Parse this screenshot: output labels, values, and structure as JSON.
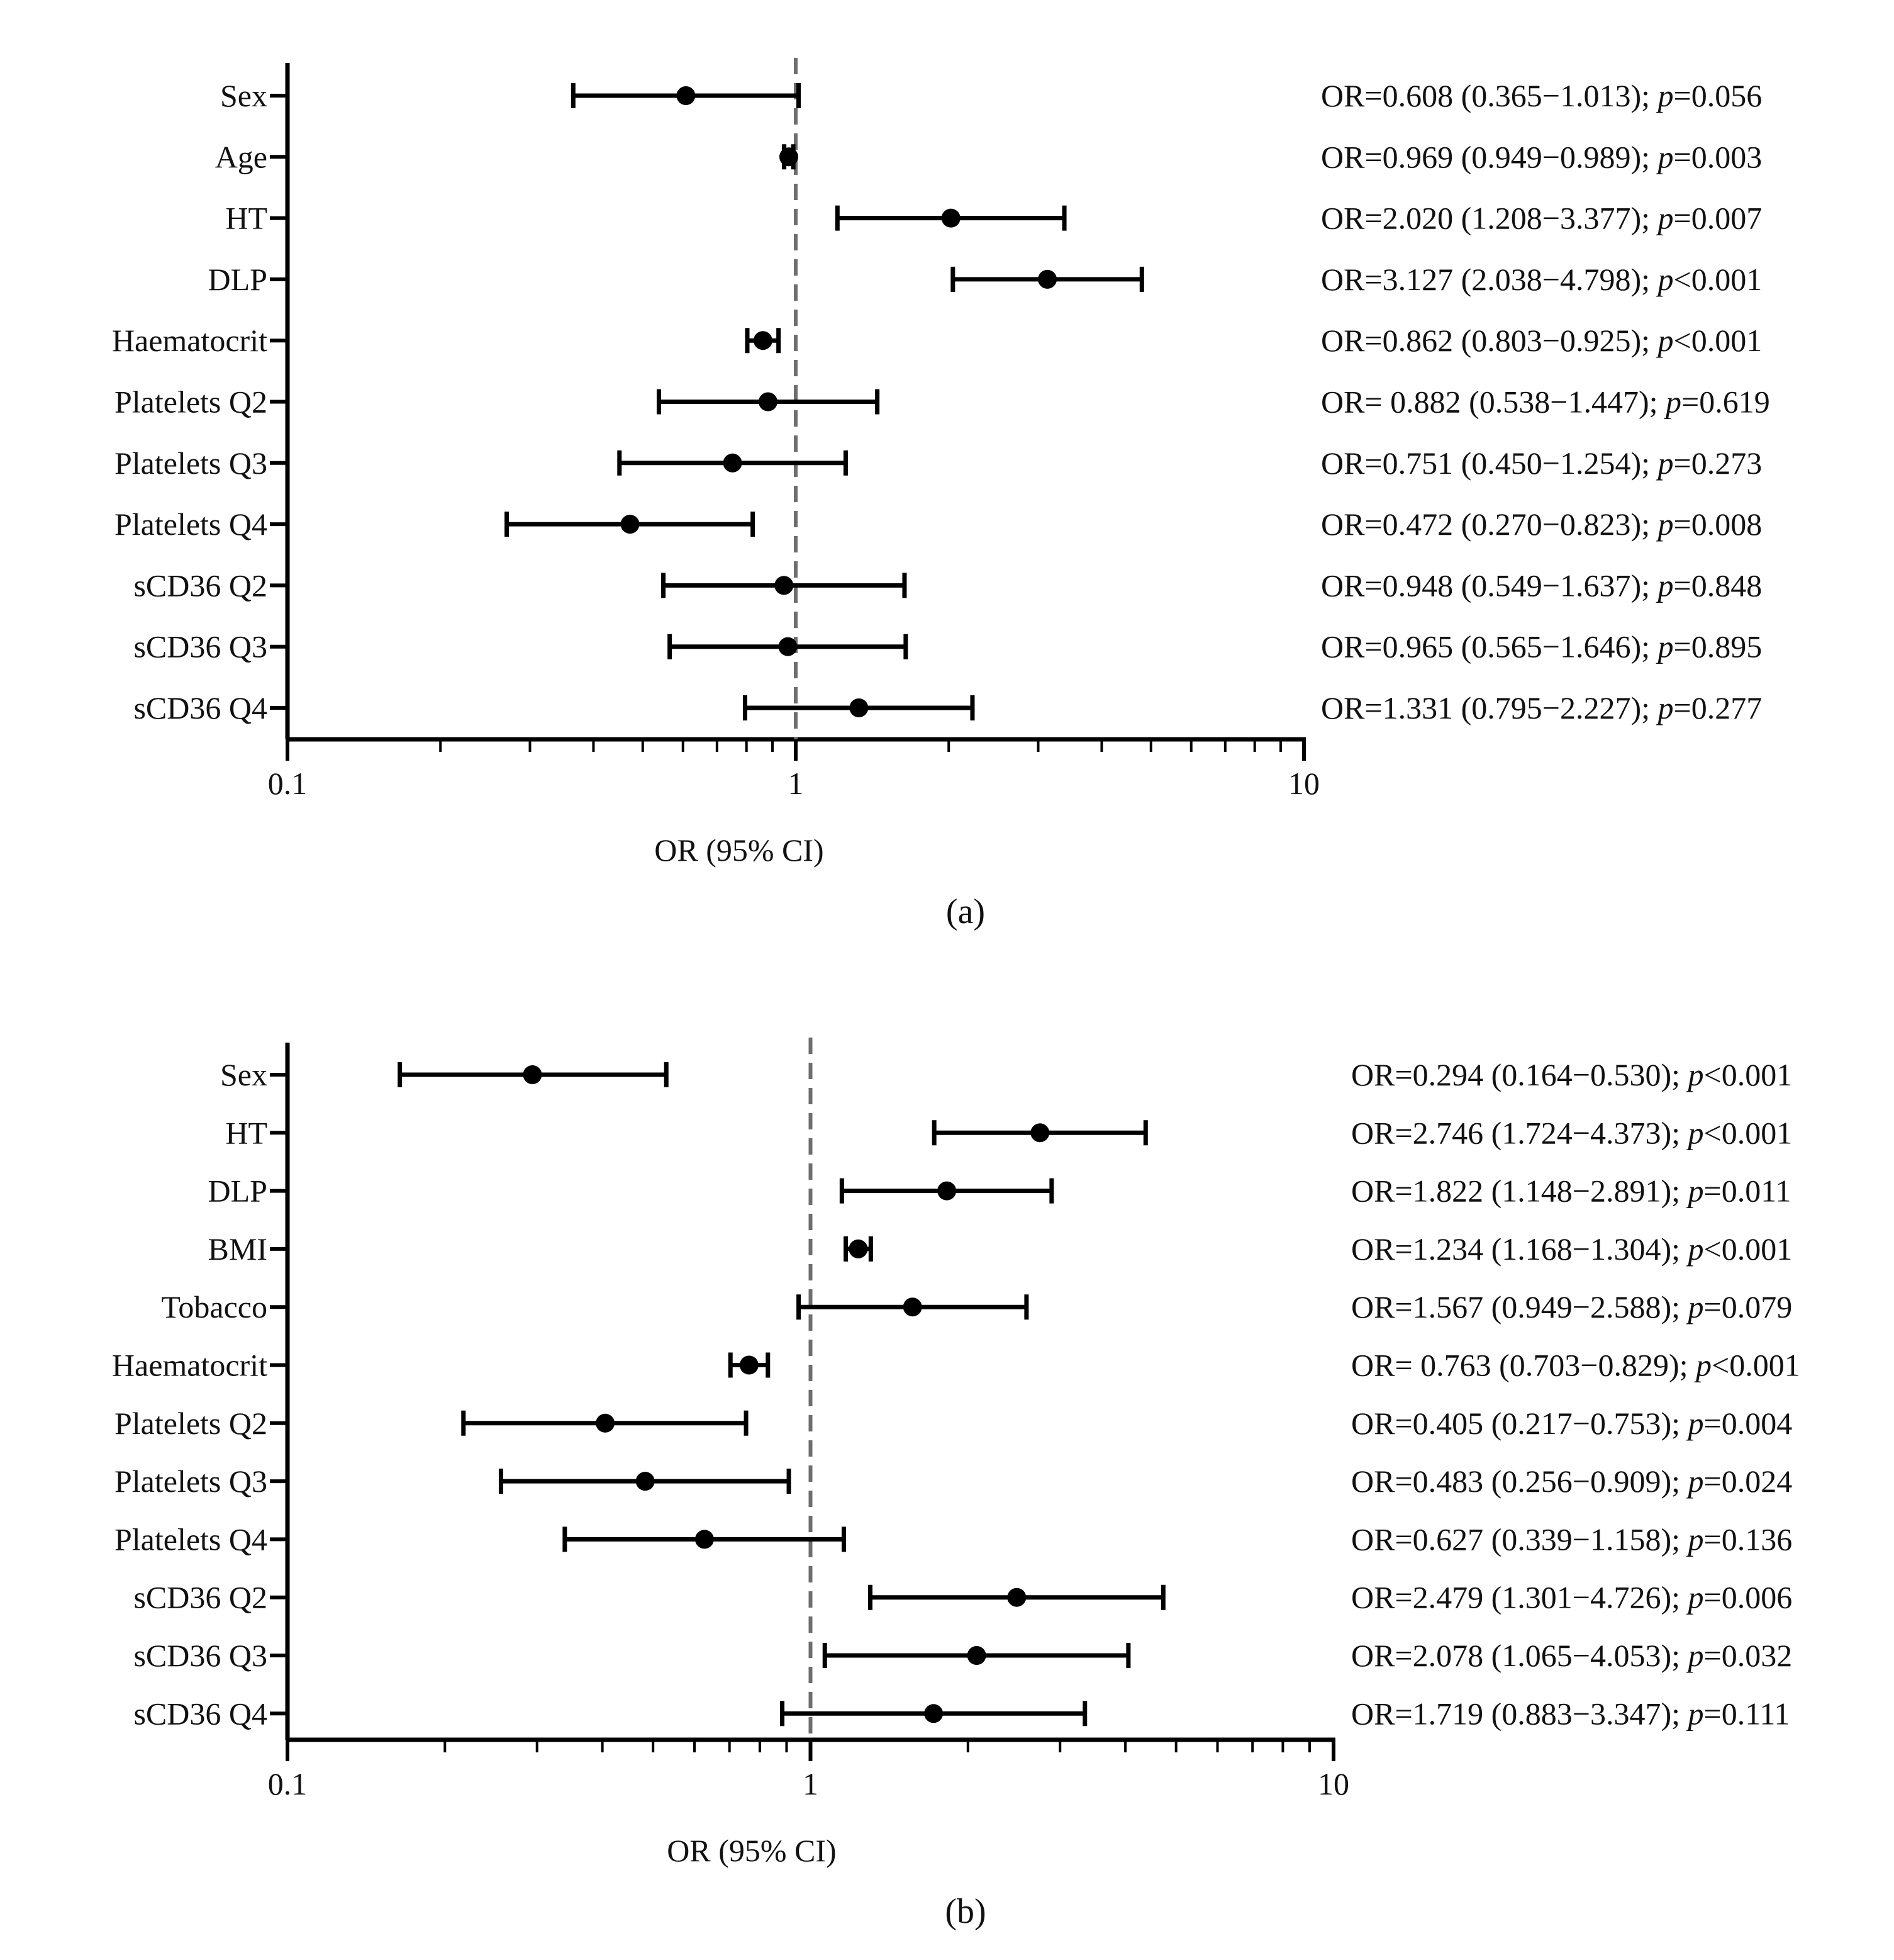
{
  "chart_data": [
    {
      "type": "forest",
      "panel_label": "(a)",
      "xlabel": "OR (95% CI)",
      "xscale": "log",
      "xlim": [
        0.1,
        10
      ],
      "xticks": [
        0.1,
        1,
        10
      ],
      "xtick_labels": [
        "0.1",
        "1",
        "10"
      ],
      "reference_line": 1,
      "rows": [
        {
          "label": "Sex",
          "or": 0.608,
          "lo": 0.365,
          "hi": 1.013,
          "ann_or": "OR=0.608 (0.365−1.013); ",
          "ann_p": "=0.056"
        },
        {
          "label": "Age",
          "or": 0.969,
          "lo": 0.949,
          "hi": 0.989,
          "ann_or": "OR=0.969 (0.949−0.989); ",
          "ann_p": "=0.003"
        },
        {
          "label": "HT",
          "or": 2.02,
          "lo": 1.208,
          "hi": 3.377,
          "ann_or": "OR=2.020 (1.208−3.377); ",
          "ann_p": "=0.007"
        },
        {
          "label": "DLP",
          "or": 3.127,
          "lo": 2.038,
          "hi": 4.798,
          "ann_or": "OR=3.127 (2.038−4.798); ",
          "ann_p": "<0.001"
        },
        {
          "label": "Haematocrit",
          "or": 0.862,
          "lo": 0.803,
          "hi": 0.925,
          "ann_or": "OR=0.862 (0.803−0.925); ",
          "ann_p": "<0.001"
        },
        {
          "label": "Platelets Q2",
          "or": 0.882,
          "lo": 0.538,
          "hi": 1.447,
          "ann_or": "OR= 0.882 (0.538−1.447); ",
          "ann_p": "=0.619"
        },
        {
          "label": "Platelets Q3",
          "or": 0.751,
          "lo": 0.45,
          "hi": 1.254,
          "ann_or": "OR=0.751 (0.450−1.254); ",
          "ann_p": "=0.273"
        },
        {
          "label": "Platelets Q4",
          "or": 0.472,
          "lo": 0.27,
          "hi": 0.823,
          "ann_or": "OR=0.472 (0.270−0.823); ",
          "ann_p": "=0.008"
        },
        {
          "label": "sCD36 Q2",
          "or": 0.948,
          "lo": 0.549,
          "hi": 1.637,
          "ann_or": "OR=0.948 (0.549−1.637); ",
          "ann_p": "=0.848"
        },
        {
          "label": "sCD36 Q3",
          "or": 0.965,
          "lo": 0.565,
          "hi": 1.646,
          "ann_or": "OR=0.965 (0.565−1.646); ",
          "ann_p": "=0.895"
        },
        {
          "label": "sCD36 Q4",
          "or": 1.331,
          "lo": 0.795,
          "hi": 2.227,
          "ann_or": "OR=1.331 (0.795−2.227); ",
          "ann_p": "=0.277"
        }
      ]
    },
    {
      "type": "forest",
      "panel_label": "(b)",
      "xlabel": "OR (95% CI)",
      "xscale": "log",
      "xlim": [
        0.1,
        10
      ],
      "xticks": [
        0.1,
        1,
        10
      ],
      "xtick_labels": [
        "0.1",
        "1",
        "10"
      ],
      "reference_line": 1,
      "rows": [
        {
          "label": "Sex",
          "or": 0.294,
          "lo": 0.164,
          "hi": 0.53,
          "ann_or": "OR=0.294 (0.164−0.530); ",
          "ann_p": "<0.001"
        },
        {
          "label": "HT",
          "or": 2.746,
          "lo": 1.724,
          "hi": 4.373,
          "ann_or": "OR=2.746 (1.724−4.373); ",
          "ann_p": "<0.001"
        },
        {
          "label": "DLP",
          "or": 1.822,
          "lo": 1.148,
          "hi": 2.891,
          "ann_or": "OR=1.822 (1.148−2.891); ",
          "ann_p": "=0.011"
        },
        {
          "label": "BMI",
          "or": 1.234,
          "lo": 1.168,
          "hi": 1.304,
          "ann_or": "OR=1.234 (1.168−1.304); ",
          "ann_p": "<0.001"
        },
        {
          "label": "Tobacco",
          "or": 1.567,
          "lo": 0.949,
          "hi": 2.588,
          "ann_or": "OR=1.567 (0.949−2.588); ",
          "ann_p": "=0.079"
        },
        {
          "label": "Haematocrit",
          "or": 0.763,
          "lo": 0.703,
          "hi": 0.829,
          "ann_or": "OR= 0.763 (0.703−0.829); ",
          "ann_p": "<0.001"
        },
        {
          "label": "Platelets Q2",
          "or": 0.405,
          "lo": 0.217,
          "hi": 0.753,
          "ann_or": "OR=0.405 (0.217−0.753); ",
          "ann_p": "=0.004"
        },
        {
          "label": "Platelets Q3",
          "or": 0.483,
          "lo": 0.256,
          "hi": 0.909,
          "ann_or": "OR=0.483 (0.256−0.909); ",
          "ann_p": "=0.024"
        },
        {
          "label": "Platelets Q4",
          "or": 0.627,
          "lo": 0.339,
          "hi": 1.158,
          "ann_or": "OR=0.627 (0.339−1.158); ",
          "ann_p": "=0.136"
        },
        {
          "label": "sCD36 Q2",
          "or": 2.479,
          "lo": 1.301,
          "hi": 4.726,
          "ann_or": "OR=2.479 (1.301−4.726); ",
          "ann_p": "=0.006"
        },
        {
          "label": "sCD36 Q3",
          "or": 2.078,
          "lo": 1.065,
          "hi": 4.053,
          "ann_or": "OR=2.078 (1.065−4.053); ",
          "ann_p": "=0.032"
        },
        {
          "label": "sCD36 Q4",
          "or": 1.719,
          "lo": 0.883,
          "hi": 3.347,
          "ann_or": "OR=1.719 (0.883−3.347); ",
          "ann_p": "=0.111"
        }
      ]
    }
  ],
  "colors": {
    "ink": "#000000",
    "reference_line": "#6e6e6e"
  },
  "p_symbol": "p"
}
